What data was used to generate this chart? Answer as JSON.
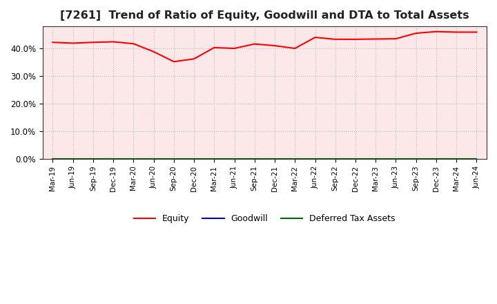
{
  "title": "[7261]  Trend of Ratio of Equity, Goodwill and DTA to Total Assets",
  "x_labels": [
    "Mar-19",
    "Jun-19",
    "Sep-19",
    "Dec-19",
    "Mar-20",
    "Jun-20",
    "Sep-20",
    "Dec-20",
    "Mar-21",
    "Jun-21",
    "Sep-21",
    "Dec-21",
    "Mar-22",
    "Jun-22",
    "Sep-22",
    "Dec-22",
    "Mar-23",
    "Jun-23",
    "Sep-23",
    "Dec-23",
    "Mar-24",
    "Jun-24"
  ],
  "equity": [
    0.422,
    0.419,
    0.422,
    0.424,
    0.417,
    0.388,
    0.352,
    0.362,
    0.403,
    0.4,
    0.416,
    0.41,
    0.4,
    0.44,
    0.433,
    0.433,
    0.434,
    0.435,
    0.455,
    0.461,
    0.459,
    0.459
  ],
  "goodwill": [
    0.0,
    0.0,
    0.0,
    0.0,
    0.0,
    0.0,
    0.0,
    0.0,
    0.0,
    0.0,
    0.0,
    0.0,
    0.0,
    0.0,
    0.0,
    0.0,
    0.0,
    0.0,
    0.0,
    0.0,
    0.0,
    0.0
  ],
  "dta": [
    0.0,
    0.0,
    0.0,
    0.0,
    0.0,
    0.0,
    0.0,
    0.0,
    0.0,
    0.0,
    0.0,
    0.0,
    0.0,
    0.0,
    0.0,
    0.0,
    0.0,
    0.0,
    0.0,
    0.0,
    0.0,
    0.0
  ],
  "equity_color": "#ff0000",
  "goodwill_color": "#0000cc",
  "dta_color": "#006600",
  "ylim": [
    0.0,
    0.48
  ],
  "yticks": [
    0.0,
    0.1,
    0.2,
    0.3,
    0.4
  ],
  "plot_bg_color": "#fce8e8",
  "background_color": "#ffffff",
  "grid_color": "#bbbbbb",
  "title_fontsize": 11.5,
  "legend_labels": [
    "Equity",
    "Goodwill",
    "Deferred Tax Assets"
  ]
}
